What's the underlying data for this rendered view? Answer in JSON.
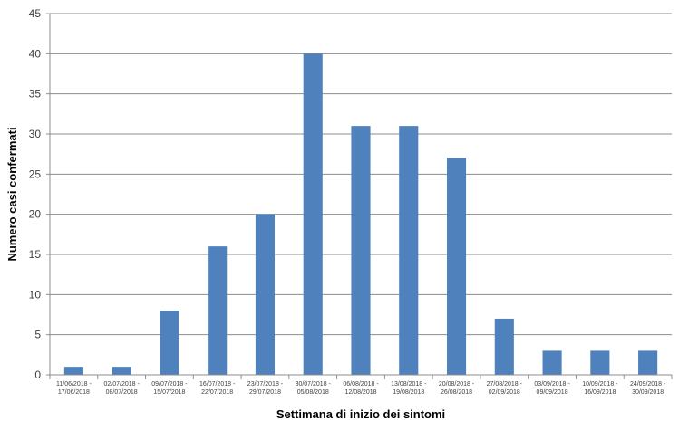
{
  "chart_data": {
    "type": "bar",
    "categories": [
      [
        "11/06/2018 -",
        "17/06/2018"
      ],
      [
        "02/07/2018 -",
        "08/07/2018"
      ],
      [
        "09/07/2018 -",
        "15/07/2018"
      ],
      [
        "16/07/2018 -",
        "22/07/2018"
      ],
      [
        "23/07/2018 -",
        "29/07/2018"
      ],
      [
        "30/07/2018 -",
        "05/08/2018"
      ],
      [
        "06/08/2018 -",
        "12/08/2018"
      ],
      [
        "13/08/2018 -",
        "19/08/2018"
      ],
      [
        "20/08/2018 -",
        "26/08/2018"
      ],
      [
        "27/08/2018 -",
        "02/09/2018"
      ],
      [
        "03/09/2018 -",
        "09/09/2018"
      ],
      [
        "10/09/2018 -",
        "16/09/2018"
      ],
      [
        "24/09/2018 -",
        "30/09/2018"
      ]
    ],
    "values": [
      1,
      1,
      8,
      16,
      20,
      40,
      31,
      31,
      27,
      7,
      3,
      3,
      3
    ],
    "xlabel": "Settimana di inizio dei sintomi",
    "ylabel": "Numero casi confermati",
    "ylim": [
      0,
      45
    ],
    "yticks": [
      0,
      5,
      10,
      15,
      20,
      25,
      30,
      35,
      40,
      45
    ],
    "grid": true,
    "legend": "none",
    "bar_color": "#4F81BD"
  }
}
